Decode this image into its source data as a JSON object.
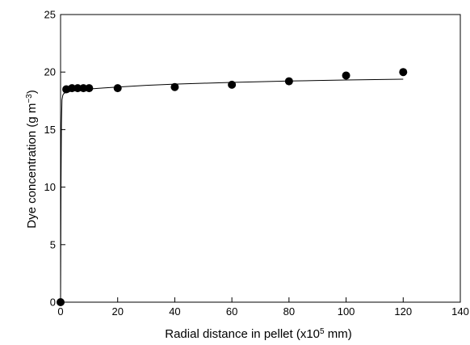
{
  "chart_data": {
    "type": "scatter",
    "title": "",
    "xlabel": {
      "main": "Radial distance in pellet (x10",
      "sup": "5",
      "tail": " mm)"
    },
    "ylabel": {
      "main": "Dye concentration (g m",
      "sup": "−3",
      "tail": ")"
    },
    "xlim": [
      0,
      140
    ],
    "ylim": [
      0,
      25
    ],
    "x_ticks": [
      0,
      20,
      40,
      60,
      80,
      100,
      120,
      140
    ],
    "y_ticks": [
      0,
      5,
      10,
      15,
      20,
      25
    ],
    "grid": false,
    "legend": "none",
    "series": [
      {
        "kind": "points",
        "marker": "filled-circle",
        "color": "#000000",
        "x": [
          0,
          2,
          4,
          6,
          8,
          10,
          20,
          40,
          60,
          80,
          100,
          120
        ],
        "y": [
          0,
          18.5,
          18.6,
          18.6,
          18.6,
          18.6,
          18.6,
          18.7,
          18.9,
          19.2,
          19.7,
          20.0
        ]
      },
      {
        "kind": "line",
        "color": "#000000",
        "x": [
          0,
          0.15,
          0.3,
          0.5,
          0.8,
          1.2,
          2,
          4,
          6,
          8,
          10,
          15,
          20,
          30,
          40,
          50,
          60,
          70,
          80,
          90,
          100,
          110,
          120
        ],
        "y": [
          0,
          10,
          15.5,
          17.6,
          18.0,
          18.15,
          18.25,
          18.35,
          18.42,
          18.48,
          18.53,
          18.62,
          18.7,
          18.85,
          18.95,
          19.03,
          19.1,
          19.16,
          19.22,
          19.27,
          19.31,
          19.35,
          19.38
        ]
      }
    ]
  }
}
